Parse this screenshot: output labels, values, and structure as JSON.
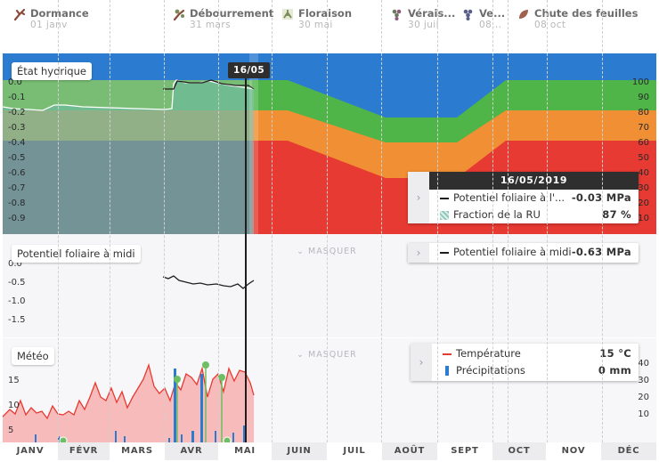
{
  "stages": [
    {
      "name": "Dormance",
      "date": "01 janv",
      "icon": "dormance-branch-icon",
      "color": "#8b4a3a"
    },
    {
      "name": "Débourrement",
      "date": "31 mars",
      "icon": "debourrement-bud-icon",
      "color": "#8b4a3a"
    },
    {
      "name": "Floraison",
      "date": "30 mai",
      "icon": "floraison-flower-icon",
      "color": "#7a8a56"
    },
    {
      "name": "Vérais...",
      "date": "30 juil",
      "icon": "veraison-grape-icon",
      "color": "#6b7a5e"
    },
    {
      "name": "Ve...",
      "date": "08...",
      "icon": "vendange-grape-icon",
      "color": "#5a5f8a"
    },
    {
      "name": "Chute des feuilles",
      "date": "08 oct",
      "icon": "leaf-fall-icon",
      "color": "#a0624e"
    }
  ],
  "cursor_date": "16/05",
  "hydric": {
    "title": "État hydrique",
    "left_ticks": [
      "0.0",
      "-0.1",
      "-0.2",
      "-0.3",
      "-0.4",
      "-0.5",
      "-0.6",
      "-0.7",
      "-0.8",
      "-0.9"
    ],
    "right_ticks": [
      "100",
      "90",
      "80",
      "70",
      "60",
      "50",
      "40",
      "30",
      "20",
      "10"
    ],
    "colors": {
      "blue": "#2b7bd0",
      "green": "#4fb548",
      "orange": "#f08f33",
      "red": "#e63a32",
      "purple": "#7d6484",
      "teal": "#6bb9a8"
    },
    "card": {
      "date": "16/05/2019",
      "rows": [
        {
          "label": "Potentiel foliaire à l'...",
          "value": "-0.03 MPa"
        },
        {
          "label": "Fraction de la RU",
          "value": "87 %"
        }
      ]
    }
  },
  "leaf": {
    "title": "Potentiel foliaire à midi",
    "masquer": "MASQUER",
    "ticks": [
      "0.0",
      "-0.5",
      "-1.0",
      "-1.5"
    ],
    "card": {
      "label": "Potentiel foliaire à midi",
      "value": "-0.63 MPa"
    }
  },
  "meteo": {
    "title": "Météo",
    "masquer": "MASQUER",
    "left_ticks": [
      "15",
      "10",
      "5"
    ],
    "right_ticks": [
      "40",
      "30",
      "20",
      "10"
    ],
    "card": {
      "rows": [
        {
          "label": "Température",
          "value": "15 °C"
        },
        {
          "label": "Précipitations",
          "value": "0 mm"
        }
      ]
    }
  },
  "months": [
    "JANV",
    "FÉVR",
    "MARS",
    "AVR",
    "MAI",
    "JUIN",
    "JUIL",
    "AOÛT",
    "SEPT",
    "OCT",
    "NOV",
    "DÉC"
  ]
}
